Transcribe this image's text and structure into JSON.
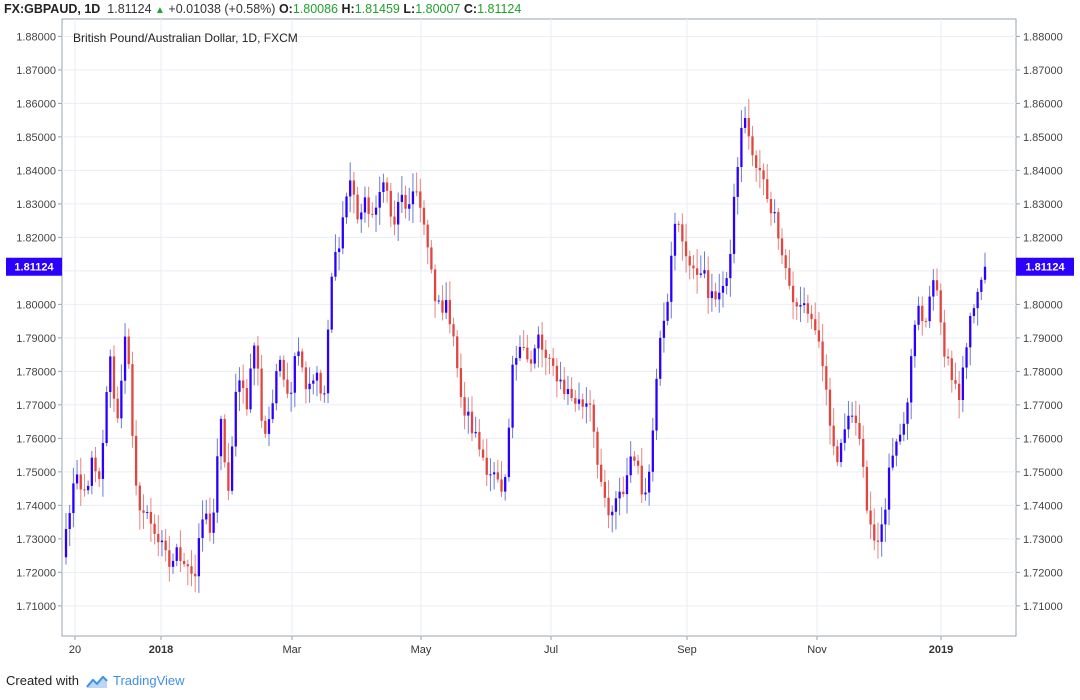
{
  "header": {
    "symbol": "FX:GBPAUD,",
    "interval": "1D",
    "last": "1.81124",
    "change": "+0.01038 (+0.58%)",
    "open_label": "O:",
    "open": "1.80086",
    "high_label": "H:",
    "high": "1.81459",
    "low_label": "L:",
    "low": "1.80007",
    "close_label": "C:",
    "close": "1.81124"
  },
  "footer": {
    "created_with": "Created with",
    "brand": "TradingView"
  },
  "colors": {
    "up": "#2b00ff",
    "down": "#e0453f",
    "grid": "#e9eef4",
    "price_tag": "#2b00ff"
  },
  "chart_data": {
    "type": "candlestick",
    "title": "British Pound/Australian Dollar, 1D, FXCM",
    "y_ticks": [
      "1.88000",
      "1.87000",
      "1.86000",
      "1.85000",
      "1.84000",
      "1.83000",
      "1.82000",
      "1.81000",
      "1.80000",
      "1.79000",
      "1.78000",
      "1.77000",
      "1.76000",
      "1.75000",
      "1.74000",
      "1.73000",
      "1.72000",
      "1.71000"
    ],
    "ylim": [
      1.701,
      1.8852
    ],
    "current_price": "1.81124",
    "x_ticks": [
      "20",
      "2018",
      "Mar",
      "May",
      "Jul",
      "Sep",
      "Nov",
      "2019"
    ],
    "x_tick_bold": [
      false,
      true,
      false,
      false,
      false,
      false,
      false,
      true
    ],
    "grid": true,
    "anchors": [
      1.732,
      1.748,
      1.742,
      1.752,
      1.745,
      1.786,
      1.765,
      1.796,
      1.745,
      1.738,
      1.735,
      1.728,
      1.722,
      1.726,
      1.724,
      1.718,
      1.738,
      1.732,
      1.765,
      1.742,
      1.782,
      1.77,
      1.79,
      1.76,
      1.77,
      1.785,
      1.772,
      1.79,
      1.775,
      1.78,
      1.77,
      1.81,
      1.822,
      1.838,
      1.826,
      1.83,
      1.825,
      1.84,
      1.822,
      1.832,
      1.828,
      1.835,
      1.818,
      1.8,
      1.8,
      1.795,
      1.77,
      1.765,
      1.758,
      1.752,
      1.748,
      1.74,
      1.78,
      1.792,
      1.78,
      1.79,
      1.782,
      1.78,
      1.775,
      1.772,
      1.77,
      1.772,
      1.752,
      1.735,
      1.74,
      1.745,
      1.758,
      1.744,
      1.75,
      1.79,
      1.802,
      1.825,
      1.818,
      1.808,
      1.812,
      1.8,
      1.805,
      1.805,
      1.838,
      1.858,
      1.842,
      1.838,
      1.83,
      1.822,
      1.808,
      1.798,
      1.8,
      1.795,
      1.785,
      1.76,
      1.752,
      1.77,
      1.765,
      1.745,
      1.73,
      1.732,
      1.752,
      1.758,
      1.77,
      1.8,
      1.792,
      1.81,
      1.79,
      1.78,
      1.77,
      1.79,
      1.805,
      1.812
    ]
  }
}
